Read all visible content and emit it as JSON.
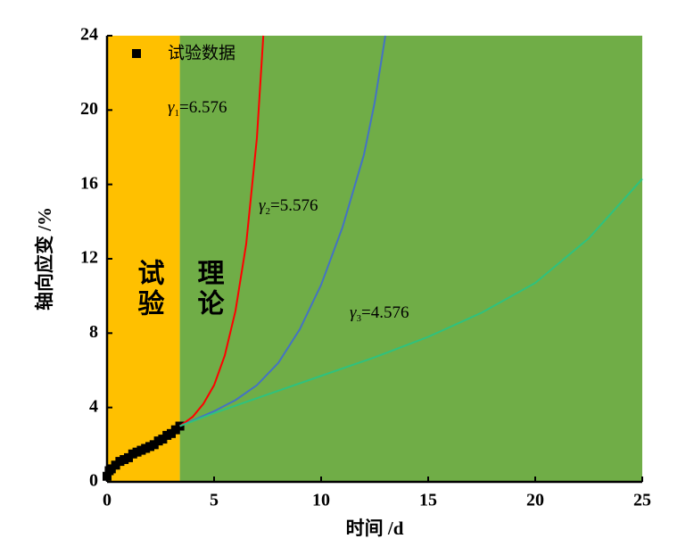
{
  "chart_data": {
    "type": "line",
    "x_label": "时间 /d",
    "y_label": "轴向应变 /%",
    "xlim": [
      0,
      25
    ],
    "ylim": [
      0,
      24
    ],
    "xticks": [
      0,
      5,
      10,
      15,
      20,
      25
    ],
    "yticks": [
      0,
      4,
      8,
      12,
      16,
      20,
      24
    ],
    "legend": "top-left",
    "regions": [
      {
        "label": "试验",
        "xlim": [
          0,
          3.4
        ],
        "color": "#ffc000"
      },
      {
        "label": "理论",
        "xlim": [
          3.4,
          25
        ],
        "color": "#70ad47"
      }
    ],
    "series": [
      {
        "name": "试验数据",
        "color": "#000000",
        "marker": "square",
        "x": [
          0,
          0.1,
          0.2,
          0.4,
          0.6,
          0.8,
          1.0,
          1.2,
          1.4,
          1.6,
          1.8,
          2.0,
          2.2,
          2.4,
          2.6,
          2.8,
          3.0,
          3.2,
          3.4
        ],
        "values": [
          0.3,
          0.6,
          0.7,
          0.9,
          1.1,
          1.2,
          1.3,
          1.5,
          1.6,
          1.7,
          1.8,
          1.9,
          2.0,
          2.2,
          2.3,
          2.5,
          2.6,
          2.8,
          3.0
        ]
      },
      {
        "color": "#ff0000",
        "label": {
          "symbol": "γ",
          "sub": "1",
          "text": "=6.576"
        },
        "x": [
          3.4,
          4,
          4.5,
          5,
          5.5,
          6,
          6.5,
          7,
          7.3
        ],
        "values": [
          3.0,
          3.5,
          4.2,
          5.2,
          6.8,
          9.2,
          12.8,
          18.5,
          24
        ]
      },
      {
        "color": "#4472c4",
        "label": {
          "symbol": "γ",
          "sub": "2",
          "text": "=5.576"
        },
        "x": [
          3.4,
          4,
          5,
          6,
          7,
          8,
          9,
          10,
          11,
          12,
          12.5,
          13
        ],
        "values": [
          3.0,
          3.3,
          3.8,
          4.4,
          5.2,
          6.4,
          8.2,
          10.6,
          13.7,
          17.6,
          20.4,
          24
        ]
      },
      {
        "color": "#2ec27e",
        "label": {
          "symbol": "γ",
          "sub": "3",
          "text": "=4.576"
        },
        "x": [
          3.4,
          5,
          7.5,
          10,
          12.5,
          15,
          17.5,
          20,
          22.5,
          25
        ],
        "values": [
          3.0,
          3.7,
          4.7,
          5.7,
          6.7,
          7.8,
          9.1,
          10.7,
          13.1,
          16.3
        ]
      }
    ]
  }
}
